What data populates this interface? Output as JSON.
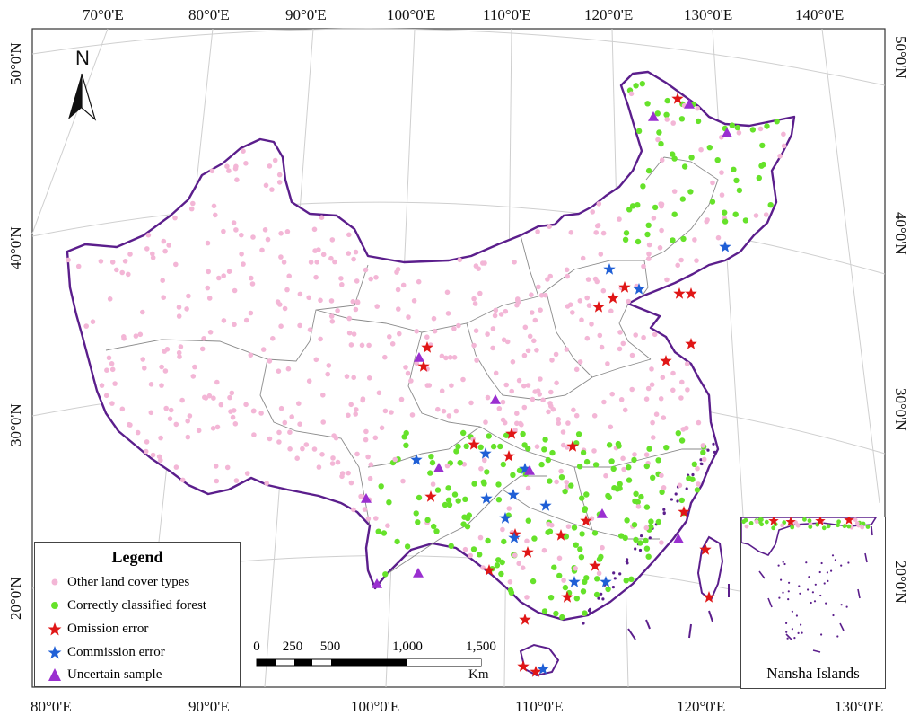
{
  "map": {
    "north_label": "N",
    "top_longitudes": [
      "70°0'E",
      "80°0'E",
      "90°0'E",
      "100°0'E",
      "110°0'E",
      "120°0'E",
      "130°0'E",
      "140°0'E"
    ],
    "bottom_longitudes": [
      "80°0'E",
      "90°0'E",
      "100°0'E",
      "110°0'E",
      "120°0'E",
      "130°0'E"
    ],
    "left_latitudes": [
      "50°0'N",
      "40°0'N",
      "30°0'N",
      "20°0'N"
    ],
    "right_latitudes": [
      "50°0'N",
      "40°0'N",
      "30°0'N",
      "20°0'N"
    ],
    "colors": {
      "background": "#ffffff",
      "boundary": "#5b1e8c",
      "province_lines": "#8a8a8a",
      "graticule": "#cfcfcf",
      "other_land": "#f3b6d6",
      "forest": "#66e22a",
      "omission": "#e01616",
      "commission": "#1f5fd6",
      "uncertain": "#9a2fd0"
    }
  },
  "legend": {
    "title": "Legend",
    "items": [
      {
        "label": "Other land cover types",
        "symbol": "dot",
        "color": "#f3b6d6"
      },
      {
        "label": "Correctly classified forest",
        "symbol": "dot",
        "color": "#66e22a"
      },
      {
        "label": "Omission error",
        "symbol": "star",
        "color": "#e01616"
      },
      {
        "label": "Commission error",
        "symbol": "star",
        "color": "#1f5fd6"
      },
      {
        "label": "Uncertain sample",
        "symbol": "triangle",
        "color": "#9a2fd0"
      }
    ]
  },
  "scale": {
    "ticks": [
      "0",
      "250",
      "500",
      "1,000",
      "1,500"
    ],
    "unit": "Km"
  },
  "inset": {
    "title": "Nansha Islands"
  }
}
